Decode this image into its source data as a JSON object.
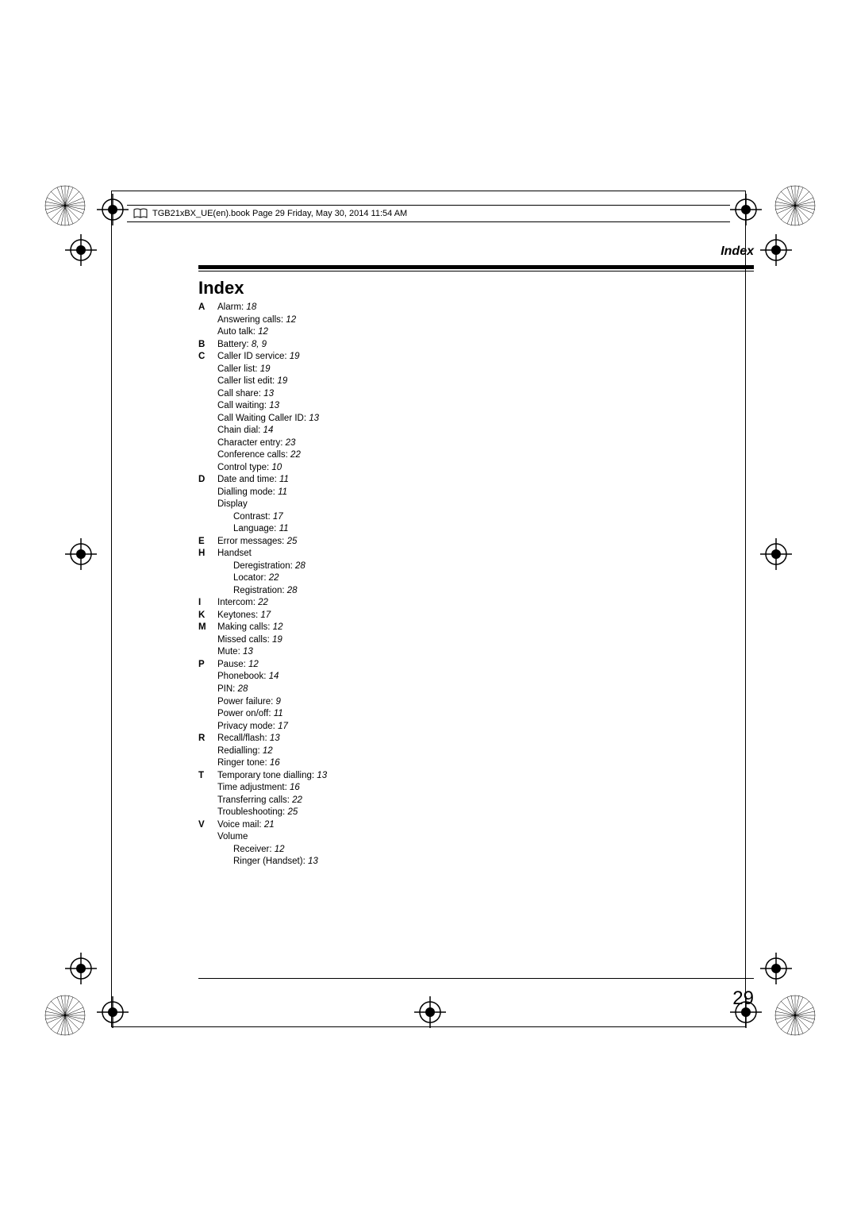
{
  "header": {
    "filename": "TGB21xBX_UE(en).book  Page 29  Friday, May 30, 2014  11:54 AM"
  },
  "section_title": "Index",
  "page_title": "Index",
  "page_number": "29",
  "index": {
    "A": [
      {
        "term": "Alarm:",
        "pages": "18"
      },
      {
        "term": "Answering calls:",
        "pages": "12"
      },
      {
        "term": "Auto talk:",
        "pages": "12"
      }
    ],
    "B": [
      {
        "term": "Battery:",
        "pages": "8, 9"
      }
    ],
    "C": [
      {
        "term": "Caller ID service:",
        "pages": "19"
      },
      {
        "term": "Caller list:",
        "pages": "19"
      },
      {
        "term": "Caller list edit:",
        "pages": "19"
      },
      {
        "term": "Call share:",
        "pages": "13"
      },
      {
        "term": "Call waiting:",
        "pages": "13"
      },
      {
        "term": "Call Waiting Caller ID:",
        "pages": "13"
      },
      {
        "term": "Chain dial:",
        "pages": "14"
      },
      {
        "term": "Character entry:",
        "pages": "23"
      },
      {
        "term": "Conference calls:",
        "pages": "22"
      },
      {
        "term": "Control type:",
        "pages": "10"
      }
    ],
    "D": [
      {
        "term": "Date and time:",
        "pages": "11"
      },
      {
        "term": "Dialling mode:",
        "pages": "11"
      },
      {
        "term": "Display",
        "pages": ""
      },
      {
        "term": "Contrast:",
        "pages": "17",
        "sub": true
      },
      {
        "term": "Language:",
        "pages": "11",
        "sub": true
      }
    ],
    "E": [
      {
        "term": "Error messages:",
        "pages": "25"
      }
    ],
    "H": [
      {
        "term": "Handset",
        "pages": ""
      },
      {
        "term": "Deregistration:",
        "pages": "28",
        "sub": true
      },
      {
        "term": "Locator:",
        "pages": "22",
        "sub": true
      },
      {
        "term": "Registration:",
        "pages": "28",
        "sub": true
      }
    ],
    "I": [
      {
        "term": "Intercom:",
        "pages": "22"
      }
    ],
    "K": [
      {
        "term": "Keytones:",
        "pages": "17"
      }
    ],
    "M": [
      {
        "term": "Making calls:",
        "pages": "12"
      },
      {
        "term": "Missed calls:",
        "pages": "19"
      },
      {
        "term": "Mute:",
        "pages": "13"
      }
    ],
    "P": [
      {
        "term": "Pause:",
        "pages": "12"
      },
      {
        "term": "Phonebook:",
        "pages": "14"
      },
      {
        "term": "PIN:",
        "pages": "28"
      },
      {
        "term": "Power failure:",
        "pages": "9"
      },
      {
        "term": "Power on/off:",
        "pages": "11"
      },
      {
        "term": "Privacy mode:",
        "pages": "17"
      }
    ],
    "R": [
      {
        "term": "Recall/flash:",
        "pages": "13"
      },
      {
        "term": "Redialling:",
        "pages": "12"
      },
      {
        "term": "Ringer tone:",
        "pages": "16"
      }
    ],
    "T": [
      {
        "term": "Temporary tone dialling:",
        "pages": "13"
      },
      {
        "term": "Time adjustment:",
        "pages": "16"
      },
      {
        "term": "Transferring calls:",
        "pages": "22"
      },
      {
        "term": "Troubleshooting:",
        "pages": "25"
      }
    ],
    "V": [
      {
        "term": "Voice mail:",
        "pages": "21"
      },
      {
        "term": "Volume",
        "pages": ""
      },
      {
        "term": "Receiver:",
        "pages": "12",
        "sub": true
      },
      {
        "term": "Ringer (Handset):",
        "pages": "13",
        "sub": true
      }
    ]
  },
  "letter_order": [
    "A",
    "B",
    "C",
    "D",
    "E",
    "H",
    "I",
    "K",
    "M",
    "P",
    "R",
    "T",
    "V"
  ]
}
